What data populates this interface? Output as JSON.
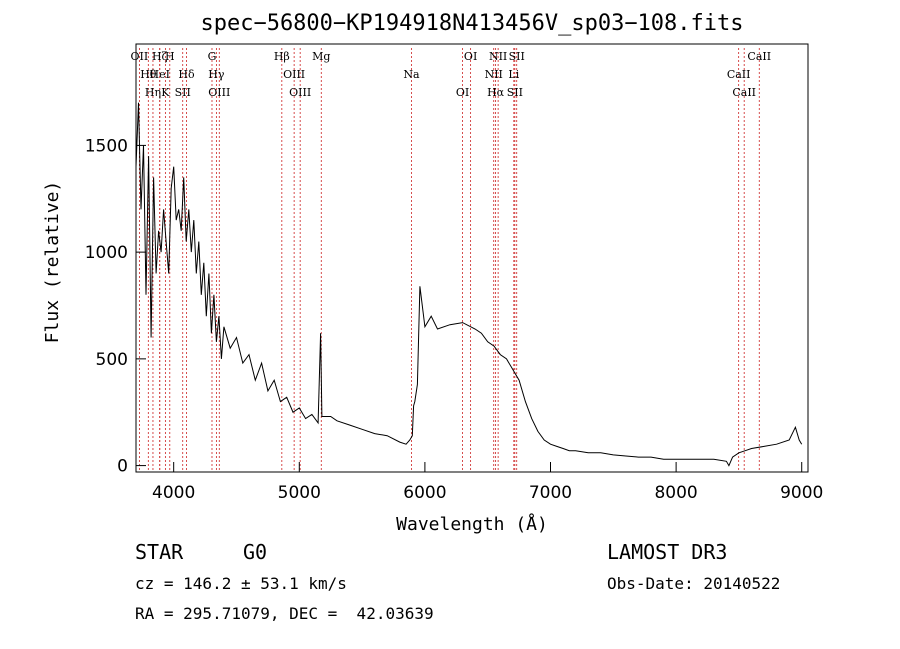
{
  "chart_data": {
    "type": "line",
    "title": "spec−56800−KP194918N413456V_sp03−108.fits",
    "xlabel": "Wavelength (Å)",
    "ylabel": "Flux (relative)",
    "xlim": [
      3700,
      9050
    ],
    "ylim": [
      -30,
      1975
    ],
    "xticks": [
      4000,
      5000,
      6000,
      7000,
      8000,
      9000
    ],
    "yticks": [
      0,
      500,
      1000,
      1500
    ],
    "series": [
      {
        "name": "flux",
        "x": [
          3700,
          3720,
          3740,
          3760,
          3780,
          3800,
          3820,
          3840,
          3860,
          3880,
          3900,
          3920,
          3940,
          3960,
          3980,
          4000,
          4020,
          4040,
          4060,
          4080,
          4100,
          4120,
          4140,
          4160,
          4180,
          4200,
          4220,
          4240,
          4260,
          4280,
          4300,
          4320,
          4340,
          4360,
          4380,
          4400,
          4450,
          4500,
          4550,
          4600,
          4650,
          4700,
          4750,
          4800,
          4850,
          4900,
          4950,
          5000,
          5050,
          5100,
          5150,
          5170,
          5180,
          5200,
          5250,
          5300,
          5400,
          5500,
          5600,
          5700,
          5800,
          5850,
          5880,
          5900,
          5910,
          5920,
          5940,
          5960,
          6000,
          6050,
          6100,
          6200,
          6300,
          6400,
          6450,
          6500,
          6550,
          6600,
          6650,
          6700,
          6750,
          6800,
          6850,
          6900,
          6950,
          7000,
          7050,
          7100,
          7150,
          7200,
          7300,
          7400,
          7500,
          7600,
          7700,
          7800,
          7900,
          8000,
          8100,
          8200,
          8300,
          8400,
          8420,
          8450,
          8500,
          8550,
          8600,
          8700,
          8800,
          8900,
          8950,
          8980,
          9000
        ],
        "values": [
          1400,
          1700,
          1200,
          1500,
          800,
          1450,
          600,
          1350,
          900,
          1100,
          1000,
          1200,
          1050,
          900,
          1300,
          1400,
          1150,
          1200,
          1100,
          1350,
          1050,
          1200,
          1000,
          1150,
          900,
          1050,
          800,
          950,
          700,
          900,
          620,
          800,
          580,
          700,
          500,
          650,
          550,
          600,
          480,
          520,
          400,
          480,
          350,
          400,
          300,
          320,
          250,
          270,
          220,
          240,
          200,
          620,
          230,
          230,
          230,
          210,
          190,
          170,
          150,
          140,
          110,
          100,
          120,
          140,
          280,
          300,
          380,
          840,
          650,
          700,
          640,
          660,
          670,
          640,
          620,
          580,
          560,
          520,
          500,
          450,
          400,
          300,
          220,
          160,
          120,
          100,
          90,
          80,
          70,
          70,
          60,
          60,
          50,
          45,
          40,
          40,
          30,
          30,
          30,
          30,
          30,
          20,
          0,
          40,
          60,
          70,
          80,
          90,
          100,
          120,
          180,
          120,
          100
        ]
      }
    ],
    "line_markers": [
      {
        "name": "OII",
        "wavelength": 3727
      },
      {
        "name": "Hθ",
        "wavelength": 3798
      },
      {
        "name": "Hη",
        "wavelength": 3835
      },
      {
        "name": "Hζ",
        "wavelength": 3889
      },
      {
        "name": "HeI",
        "wavelength": 3889
      },
      {
        "name": "K",
        "wavelength": 3934
      },
      {
        "name": "H",
        "wavelength": 3969
      },
      {
        "name": "Hδ",
        "wavelength": 4102
      },
      {
        "name": "SII",
        "wavelength": 4072
      },
      {
        "name": "G",
        "wavelength": 4305
      },
      {
        "name": "Hγ",
        "wavelength": 4340
      },
      {
        "name": "OIII",
        "wavelength": 4363
      },
      {
        "name": "Hβ",
        "wavelength": 4861
      },
      {
        "name": "OIII",
        "wavelength": 4959
      },
      {
        "name": "OIII",
        "wavelength": 5007
      },
      {
        "name": "Mg",
        "wavelength": 5175
      },
      {
        "name": "Na",
        "wavelength": 5893
      },
      {
        "name": "OI",
        "wavelength": 6300
      },
      {
        "name": "OI",
        "wavelength": 6364
      },
      {
        "name": "NII",
        "wavelength": 6548
      },
      {
        "name": "Hα",
        "wavelength": 6563
      },
      {
        "name": "NII",
        "wavelength": 6583
      },
      {
        "name": "Li",
        "wavelength": 6708
      },
      {
        "name": "SII",
        "wavelength": 6716
      },
      {
        "name": "SII",
        "wavelength": 6731
      },
      {
        "name": "CaII",
        "wavelength": 8498
      },
      {
        "name": "CaII",
        "wavelength": 8542
      },
      {
        "name": "CaII",
        "wavelength": 8662
      }
    ]
  },
  "info": {
    "object_class": "STAR",
    "subclass": "G0",
    "survey": "LAMOST DR3",
    "redshift_line": "cz = 146.2 ± 53.1 km/s",
    "obs_date": "Obs-Date: 20140522",
    "coords": "RA = 295.71079, DEC =  42.03639"
  }
}
